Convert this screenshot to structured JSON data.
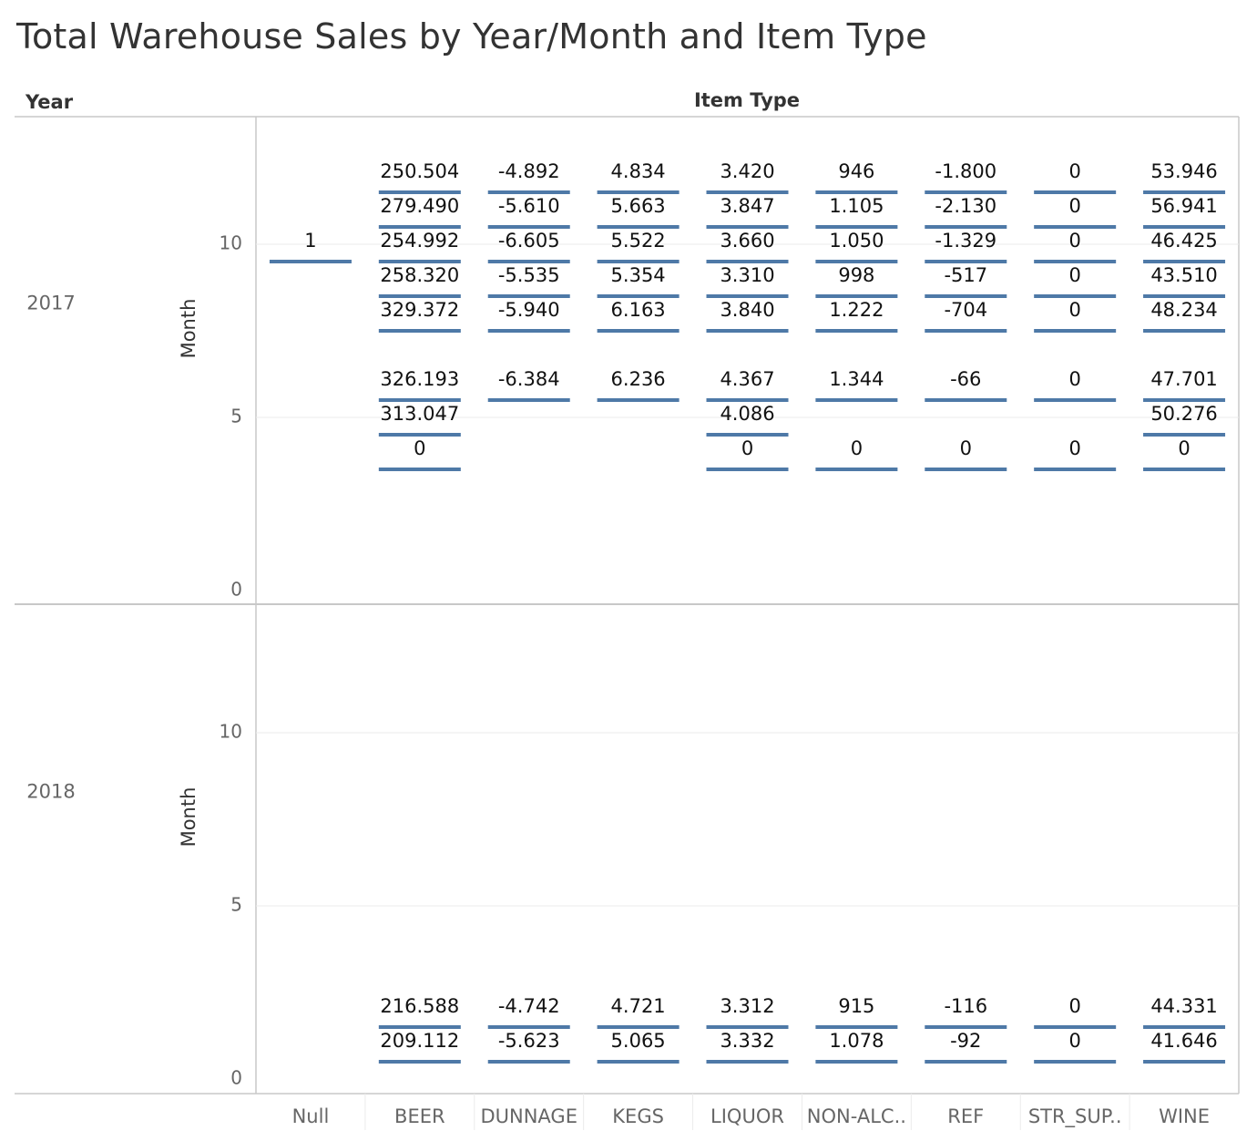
{
  "chart_data": {
    "type": "gantt",
    "title": "Total Warehouse Sales by Year/Month and Item Type",
    "row_header": "Year",
    "column_header": "Item Type",
    "ylabel": "Month",
    "ylim": [
      0,
      14
    ],
    "yticks": [
      0,
      5,
      10
    ],
    "grid": true,
    "categories": [
      "Null",
      "BEER",
      "DUNNAGE",
      "KEGS",
      "LIQUOR",
      "NON-ALC..",
      "REF",
      "STR_SUP..",
      "WINE"
    ],
    "panels": [
      {
        "year": "2017",
        "series": [
          {
            "category": "Null",
            "points": [
              {
                "month": 10,
                "label": "1"
              }
            ]
          },
          {
            "category": "BEER",
            "points": [
              {
                "month": 12,
                "label": "250.504"
              },
              {
                "month": 11,
                "label": "279.490"
              },
              {
                "month": 10,
                "label": "254.992"
              },
              {
                "month": 9,
                "label": "258.320"
              },
              {
                "month": 8,
                "label": "329.372"
              },
              {
                "month": 6,
                "label": "326.193"
              },
              {
                "month": 5,
                "label": "313.047"
              },
              {
                "month": 4,
                "label": "0"
              }
            ]
          },
          {
            "category": "DUNNAGE",
            "points": [
              {
                "month": 12,
                "label": "-4.892"
              },
              {
                "month": 11,
                "label": "-5.610"
              },
              {
                "month": 10,
                "label": "-6.605"
              },
              {
                "month": 9,
                "label": "-5.535"
              },
              {
                "month": 8,
                "label": "-5.940"
              },
              {
                "month": 6,
                "label": "-6.384"
              }
            ]
          },
          {
            "category": "KEGS",
            "points": [
              {
                "month": 12,
                "label": "4.834"
              },
              {
                "month": 11,
                "label": "5.663"
              },
              {
                "month": 10,
                "label": "5.522"
              },
              {
                "month": 9,
                "label": "5.354"
              },
              {
                "month": 8,
                "label": "6.163"
              },
              {
                "month": 6,
                "label": "6.236"
              }
            ]
          },
          {
            "category": "LIQUOR",
            "points": [
              {
                "month": 12,
                "label": "3.420"
              },
              {
                "month": 11,
                "label": "3.847"
              },
              {
                "month": 10,
                "label": "3.660"
              },
              {
                "month": 9,
                "label": "3.310"
              },
              {
                "month": 8,
                "label": "3.840"
              },
              {
                "month": 6,
                "label": "4.367"
              },
              {
                "month": 5,
                "label": "4.086"
              },
              {
                "month": 4,
                "label": "0"
              }
            ]
          },
          {
            "category": "NON-ALC..",
            "points": [
              {
                "month": 12,
                "label": "946"
              },
              {
                "month": 11,
                "label": "1.105"
              },
              {
                "month": 10,
                "label": "1.050"
              },
              {
                "month": 9,
                "label": "998"
              },
              {
                "month": 8,
                "label": "1.222"
              },
              {
                "month": 6,
                "label": "1.344"
              },
              {
                "month": 4,
                "label": "0"
              }
            ]
          },
          {
            "category": "REF",
            "points": [
              {
                "month": 12,
                "label": "-1.800"
              },
              {
                "month": 11,
                "label": "-2.130"
              },
              {
                "month": 10,
                "label": "-1.329"
              },
              {
                "month": 9,
                "label": "-517"
              },
              {
                "month": 8,
                "label": "-704"
              },
              {
                "month": 6,
                "label": "-66"
              },
              {
                "month": 4,
                "label": "0"
              }
            ]
          },
          {
            "category": "STR_SUP..",
            "points": [
              {
                "month": 12,
                "label": "0"
              },
              {
                "month": 11,
                "label": "0"
              },
              {
                "month": 10,
                "label": "0"
              },
              {
                "month": 9,
                "label": "0"
              },
              {
                "month": 8,
                "label": "0"
              },
              {
                "month": 6,
                "label": "0"
              },
              {
                "month": 4,
                "label": "0"
              }
            ]
          },
          {
            "category": "WINE",
            "points": [
              {
                "month": 12,
                "label": "53.946"
              },
              {
                "month": 11,
                "label": "56.941"
              },
              {
                "month": 10,
                "label": "46.425"
              },
              {
                "month": 9,
                "label": "43.510"
              },
              {
                "month": 8,
                "label": "48.234"
              },
              {
                "month": 6,
                "label": "47.701"
              },
              {
                "month": 5,
                "label": "50.276"
              },
              {
                "month": 4,
                "label": "0"
              }
            ]
          }
        ]
      },
      {
        "year": "2018",
        "series": [
          {
            "category": "BEER",
            "points": [
              {
                "month": 2,
                "label": "216.588"
              },
              {
                "month": 1,
                "label": "209.112"
              }
            ]
          },
          {
            "category": "DUNNAGE",
            "points": [
              {
                "month": 2,
                "label": "-4.742"
              },
              {
                "month": 1,
                "label": "-5.623"
              }
            ]
          },
          {
            "category": "KEGS",
            "points": [
              {
                "month": 2,
                "label": "4.721"
              },
              {
                "month": 1,
                "label": "5.065"
              }
            ]
          },
          {
            "category": "LIQUOR",
            "points": [
              {
                "month": 2,
                "label": "3.312"
              },
              {
                "month": 1,
                "label": "3.332"
              }
            ]
          },
          {
            "category": "NON-ALC..",
            "points": [
              {
                "month": 2,
                "label": "915"
              },
              {
                "month": 1,
                "label": "1.078"
              }
            ]
          },
          {
            "category": "REF",
            "points": [
              {
                "month": 2,
                "label": "-116"
              },
              {
                "month": 1,
                "label": "-92"
              }
            ]
          },
          {
            "category": "STR_SUP..",
            "points": [
              {
                "month": 2,
                "label": "0"
              },
              {
                "month": 1,
                "label": "0"
              }
            ]
          },
          {
            "category": "WINE",
            "points": [
              {
                "month": 2,
                "label": "44.331"
              },
              {
                "month": 1,
                "label": "41.646"
              }
            ]
          }
        ]
      }
    ]
  },
  "colors": {
    "mark": "#4e79a7",
    "grid": "#ebebeb",
    "border": "#c8c8c8",
    "text": "#333333",
    "muted": "#666666"
  }
}
